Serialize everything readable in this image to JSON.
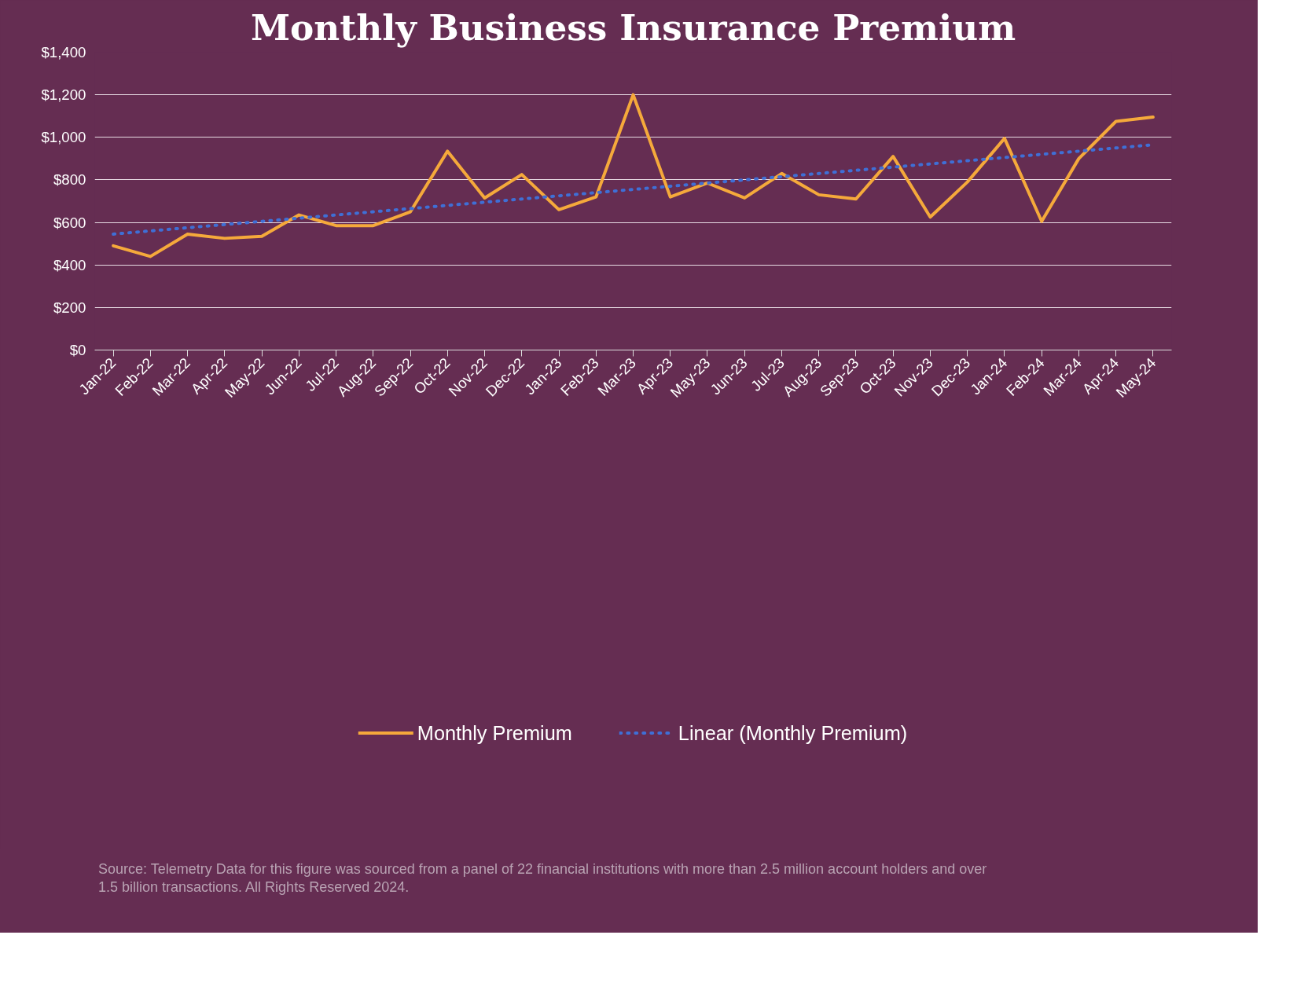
{
  "chart_data": {
    "type": "line",
    "title": "Monthly Business Insurance Premium",
    "categories": [
      "Jan-22",
      "Feb-22",
      "Mar-22",
      "Apr-22",
      "May-22",
      "Jun-22",
      "Jul-22",
      "Aug-22",
      "Sep-22",
      "Oct-22",
      "Nov-22",
      "Dec-22",
      "Jan-23",
      "Feb-23",
      "Mar-23",
      "Apr-23",
      "May-23",
      "Jun-23",
      "Jul-23",
      "Aug-23",
      "Sep-23",
      "Oct-23",
      "Nov-23",
      "Dec-23",
      "Jan-24",
      "Feb-24",
      "Mar-24",
      "Apr-24",
      "May-24"
    ],
    "series": [
      {
        "name": "Monthly Premium",
        "color": "#f5a93b",
        "line_style": "solid",
        "values": [
          490,
          440,
          545,
          525,
          535,
          635,
          585,
          585,
          650,
          935,
          715,
          825,
          660,
          720,
          1200,
          720,
          785,
          715,
          830,
          730,
          710,
          910,
          625,
          790,
          995,
          605,
          900,
          1075,
          1095
        ]
      },
      {
        "name": "Linear (Monthly Premium)",
        "color": "#3f6fd6",
        "line_style": "dotted",
        "values": [
          545,
          560,
          575,
          590,
          605,
          620,
          635,
          650,
          665,
          680,
          695,
          710,
          725,
          740,
          755,
          770,
          785,
          800,
          815,
          830,
          845,
          860,
          875,
          890,
          905,
          920,
          935,
          950,
          965
        ]
      }
    ],
    "ylim": [
      0,
      1400
    ],
    "yticks": [
      {
        "value": 0,
        "label": "$0"
      },
      {
        "value": 200,
        "label": "$200"
      },
      {
        "value": 400,
        "label": "$400"
      },
      {
        "value": 600,
        "label": "$600"
      },
      {
        "value": 800,
        "label": "$800"
      },
      {
        "value": 1000,
        "label": "$1,000"
      },
      {
        "value": 1200,
        "label": "$1,200"
      },
      {
        "value": 1400,
        "label": "$1,400"
      }
    ],
    "grid": "y",
    "legend": "bottom",
    "marker": "none",
    "annotations": [
      "Source: Telemetry Data for this figure was sourced from a panel of 22 financial institutions with more than 2.5 million account holders and over 1.5 billion transactions. All Rights Reserved 2024."
    ]
  }
}
